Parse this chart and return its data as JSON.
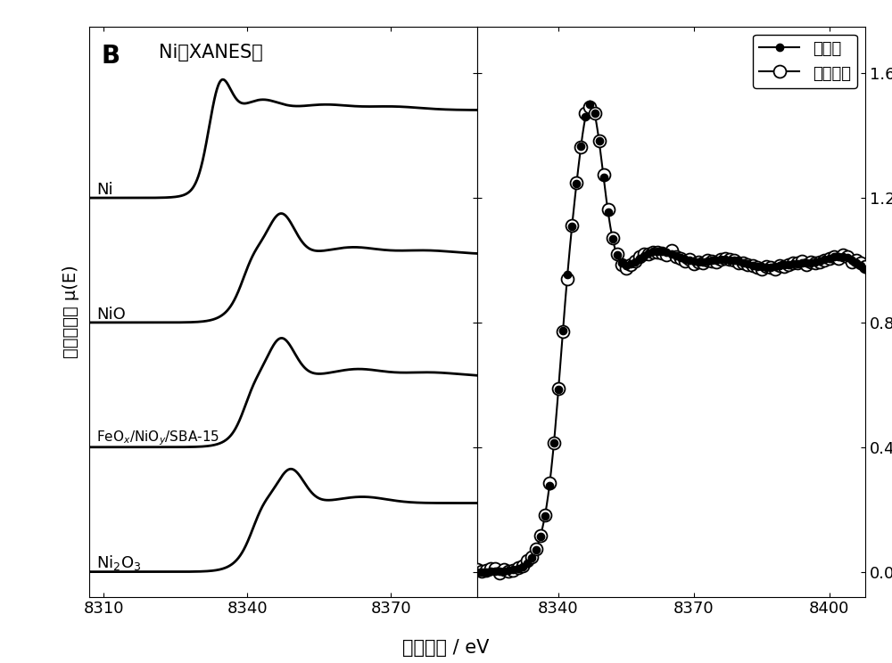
{
  "title_left": "B",
  "title_text": "Ni的XANES谱",
  "ylabel": "归一化吸收 μ(E)",
  "xlabel": "光子能量 / eV",
  "left_xlim": [
    8307,
    8388
  ],
  "right_xlim": [
    8322,
    8408
  ],
  "yticks": [
    0.0,
    0.4,
    0.8,
    1.2,
    1.6
  ],
  "left_xticks": [
    8310,
    8340,
    8370
  ],
  "right_xticks": [
    8340,
    8370,
    8400
  ],
  "offsets": [
    1.2,
    0.8,
    0.4,
    0.0
  ],
  "legend_entries": [
    "本发明",
    "拟合曲线"
  ],
  "bg_color": "#ffffff",
  "line_color": "#000000"
}
